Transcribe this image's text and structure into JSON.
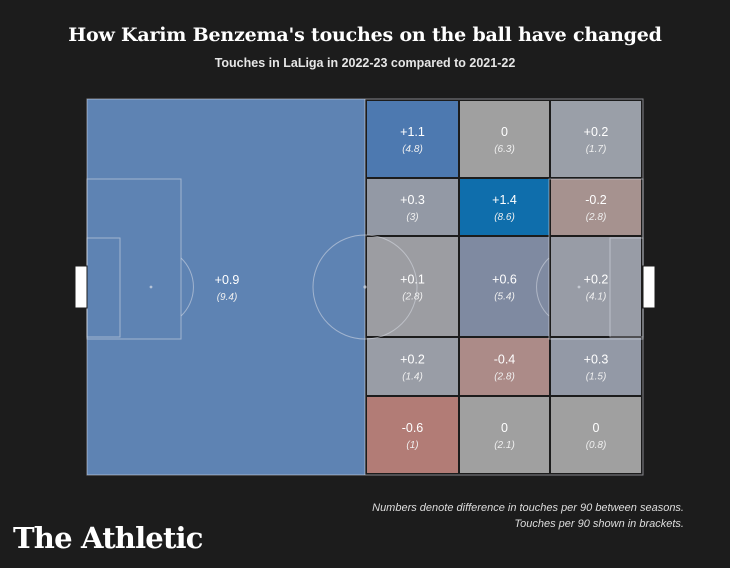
{
  "title": "How Karim Benzema's touches on the ball have changed",
  "subtitle": "Touches in LaLiga in 2022-23 compared to 2021-22",
  "footnote": {
    "line1": "Numbers denote difference in touches per 90 between seasons.",
    "line2": "Touches per 90 shown in brackets."
  },
  "brand": "The Athletic",
  "colors": {
    "background": "#1c1c1c",
    "pitch_lines": "#d9dde6"
  },
  "chart_data": {
    "type": "heatmap",
    "zones": [
      {
        "id": "own-half",
        "diff": "+0.9",
        "touches": "(9.4)",
        "color": "#5e83b3"
      },
      {
        "id": "r1c1",
        "diff": "+1.1",
        "touches": "(4.8)",
        "color": "#4d79b0"
      },
      {
        "id": "r1c2",
        "diff": "0",
        "touches": "(6.3)",
        "color": "#a0a0a0"
      },
      {
        "id": "r1c3",
        "diff": "+0.2",
        "touches": "(1.7)",
        "color": "#9a9fa8"
      },
      {
        "id": "r2c1",
        "diff": "+0.3",
        "touches": "(3)",
        "color": "#9399a5"
      },
      {
        "id": "r2c2",
        "diff": "+1.4",
        "touches": "(8.6)",
        "color": "#0f6eac"
      },
      {
        "id": "r2c3",
        "diff": "-0.2",
        "touches": "(2.8)",
        "color": "#a6928f"
      },
      {
        "id": "r3c1",
        "diff": "+0.1",
        "touches": "(2.8)",
        "color": "#9c9da2"
      },
      {
        "id": "r3c2",
        "diff": "+0.6",
        "touches": "(5.4)",
        "color": "#7f8aa1"
      },
      {
        "id": "r3c3",
        "diff": "+0.2",
        "touches": "(4.1)",
        "color": "#989ca6"
      },
      {
        "id": "r4c1",
        "diff": "+0.2",
        "touches": "(1.4)",
        "color": "#999da6"
      },
      {
        "id": "r4c2",
        "diff": "-0.4",
        "touches": "(2.8)",
        "color": "#ac8b88"
      },
      {
        "id": "r4c3",
        "diff": "+0.3",
        "touches": "(1.5)",
        "color": "#9399a6"
      },
      {
        "id": "r5c1",
        "diff": "-0.6",
        "touches": "(1)",
        "color": "#b27c76"
      },
      {
        "id": "r5c2",
        "diff": "0",
        "touches": "(2.1)",
        "color": "#a0a0a0"
      },
      {
        "id": "r5c3",
        "diff": "0",
        "touches": "(0.8)",
        "color": "#a0a0a0"
      }
    ]
  }
}
